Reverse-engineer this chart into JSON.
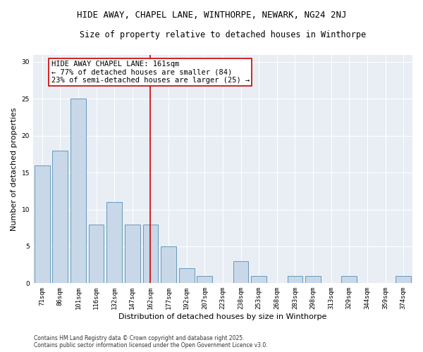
{
  "title_line1": "HIDE AWAY, CHAPEL LANE, WINTHORPE, NEWARK, NG24 2NJ",
  "title_line2": "Size of property relative to detached houses in Winthorpe",
  "xlabel": "Distribution of detached houses by size in Winthorpe",
  "ylabel": "Number of detached properties",
  "categories": [
    "71sqm",
    "86sqm",
    "101sqm",
    "116sqm",
    "132sqm",
    "147sqm",
    "162sqm",
    "177sqm",
    "192sqm",
    "207sqm",
    "223sqm",
    "238sqm",
    "253sqm",
    "268sqm",
    "283sqm",
    "298sqm",
    "313sqm",
    "329sqm",
    "344sqm",
    "359sqm",
    "374sqm"
  ],
  "values": [
    16,
    18,
    25,
    8,
    11,
    8,
    8,
    5,
    2,
    1,
    0,
    3,
    1,
    0,
    1,
    1,
    0,
    1,
    0,
    0,
    1
  ],
  "bar_color": "#c8d8e8",
  "bar_edge_color": "#6699bb",
  "vline_x_index": 6,
  "vline_color": "#cc0000",
  "annotation_text": "HIDE AWAY CHAPEL LANE: 161sqm\n← 77% of detached houses are smaller (84)\n23% of semi-detached houses are larger (25) →",
  "annotation_box_color": "#ffffff",
  "annotation_box_edge": "#cc0000",
  "ylim": [
    0,
    31
  ],
  "yticks": [
    0,
    5,
    10,
    15,
    20,
    25,
    30
  ],
  "background_color": "#e8eef4",
  "footer_text": "Contains HM Land Registry data © Crown copyright and database right 2025.\nContains public sector information licensed under the Open Government Licence v3.0.",
  "title_fontsize": 9,
  "subtitle_fontsize": 8.5,
  "axis_label_fontsize": 8,
  "tick_fontsize": 6.5,
  "annotation_fontsize": 7.5,
  "footer_fontsize": 5.5
}
